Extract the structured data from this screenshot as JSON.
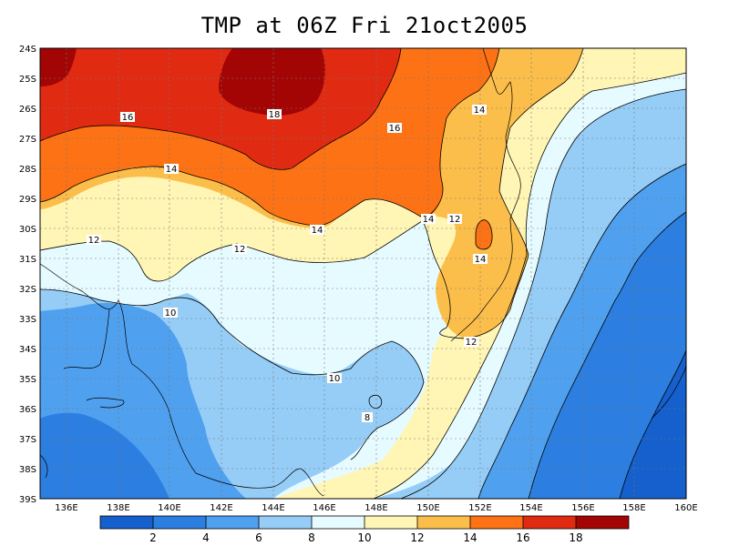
{
  "title": "TMP at 06Z Fri 21oct2005",
  "lat_ticks": [
    "24S",
    "25S",
    "26S",
    "27S",
    "28S",
    "29S",
    "30S",
    "31S",
    "32S",
    "33S",
    "34S",
    "35S",
    "36S",
    "37S",
    "38S",
    "39S"
  ],
  "lon_ticks": [
    "136E",
    "138E",
    "140E",
    "142E",
    "144E",
    "146E",
    "148E",
    "150E",
    "152E",
    "154E",
    "156E",
    "158E",
    "160E"
  ],
  "contour_labels": [
    "16",
    "18",
    "16",
    "14",
    "14",
    "14",
    "12",
    "14",
    "12",
    "12",
    "10",
    "10",
    "8",
    "12",
    "14"
  ],
  "colorbar": {
    "labels": [
      "2",
      "4",
      "6",
      "8",
      "10",
      "12",
      "14",
      "16",
      "18"
    ],
    "colors": [
      "#1560cc",
      "#2c7fe0",
      "#4fa0ee",
      "#96cdf7",
      "#e6fbff",
      "#fff5b4",
      "#fcbe4a",
      "#fc7214",
      "#e12a12",
      "#a30505"
    ]
  }
}
